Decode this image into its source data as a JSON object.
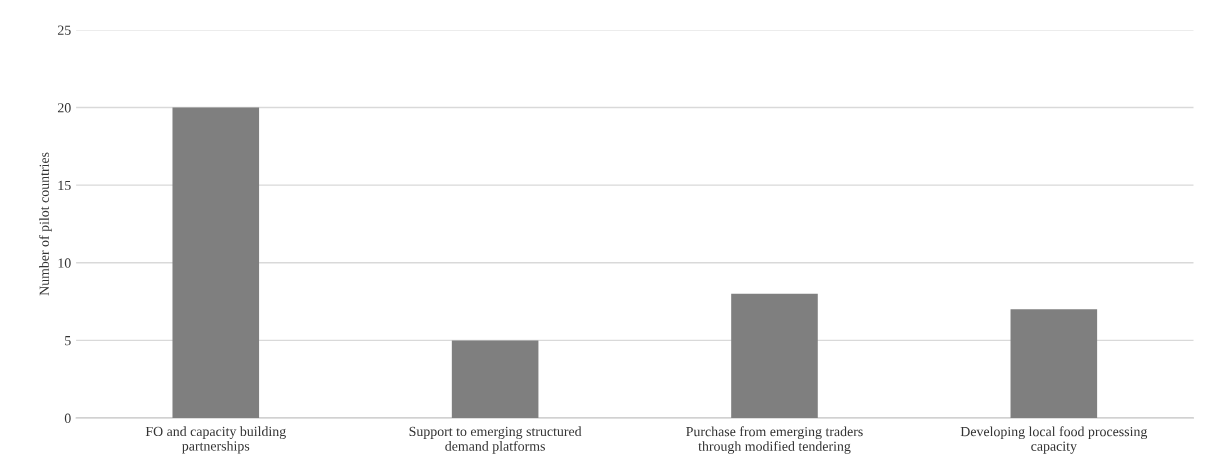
{
  "chart_data": {
    "type": "bar",
    "ylabel": "Number of pilot countries",
    "categories": [
      "FO and capacity building\npartnerships",
      "Support to emerging structured\ndemand platforms",
      "Purchase from emerging traders\nthrough modified tendering",
      "Developing local food processing\ncapacity"
    ],
    "values": [
      20,
      5,
      8,
      7
    ],
    "color": "#7f7f7f",
    "ylim": [
      0,
      25
    ],
    "yticks": [
      0,
      5,
      10,
      15,
      20,
      25
    ],
    "grid": "y",
    "legend": false
  }
}
